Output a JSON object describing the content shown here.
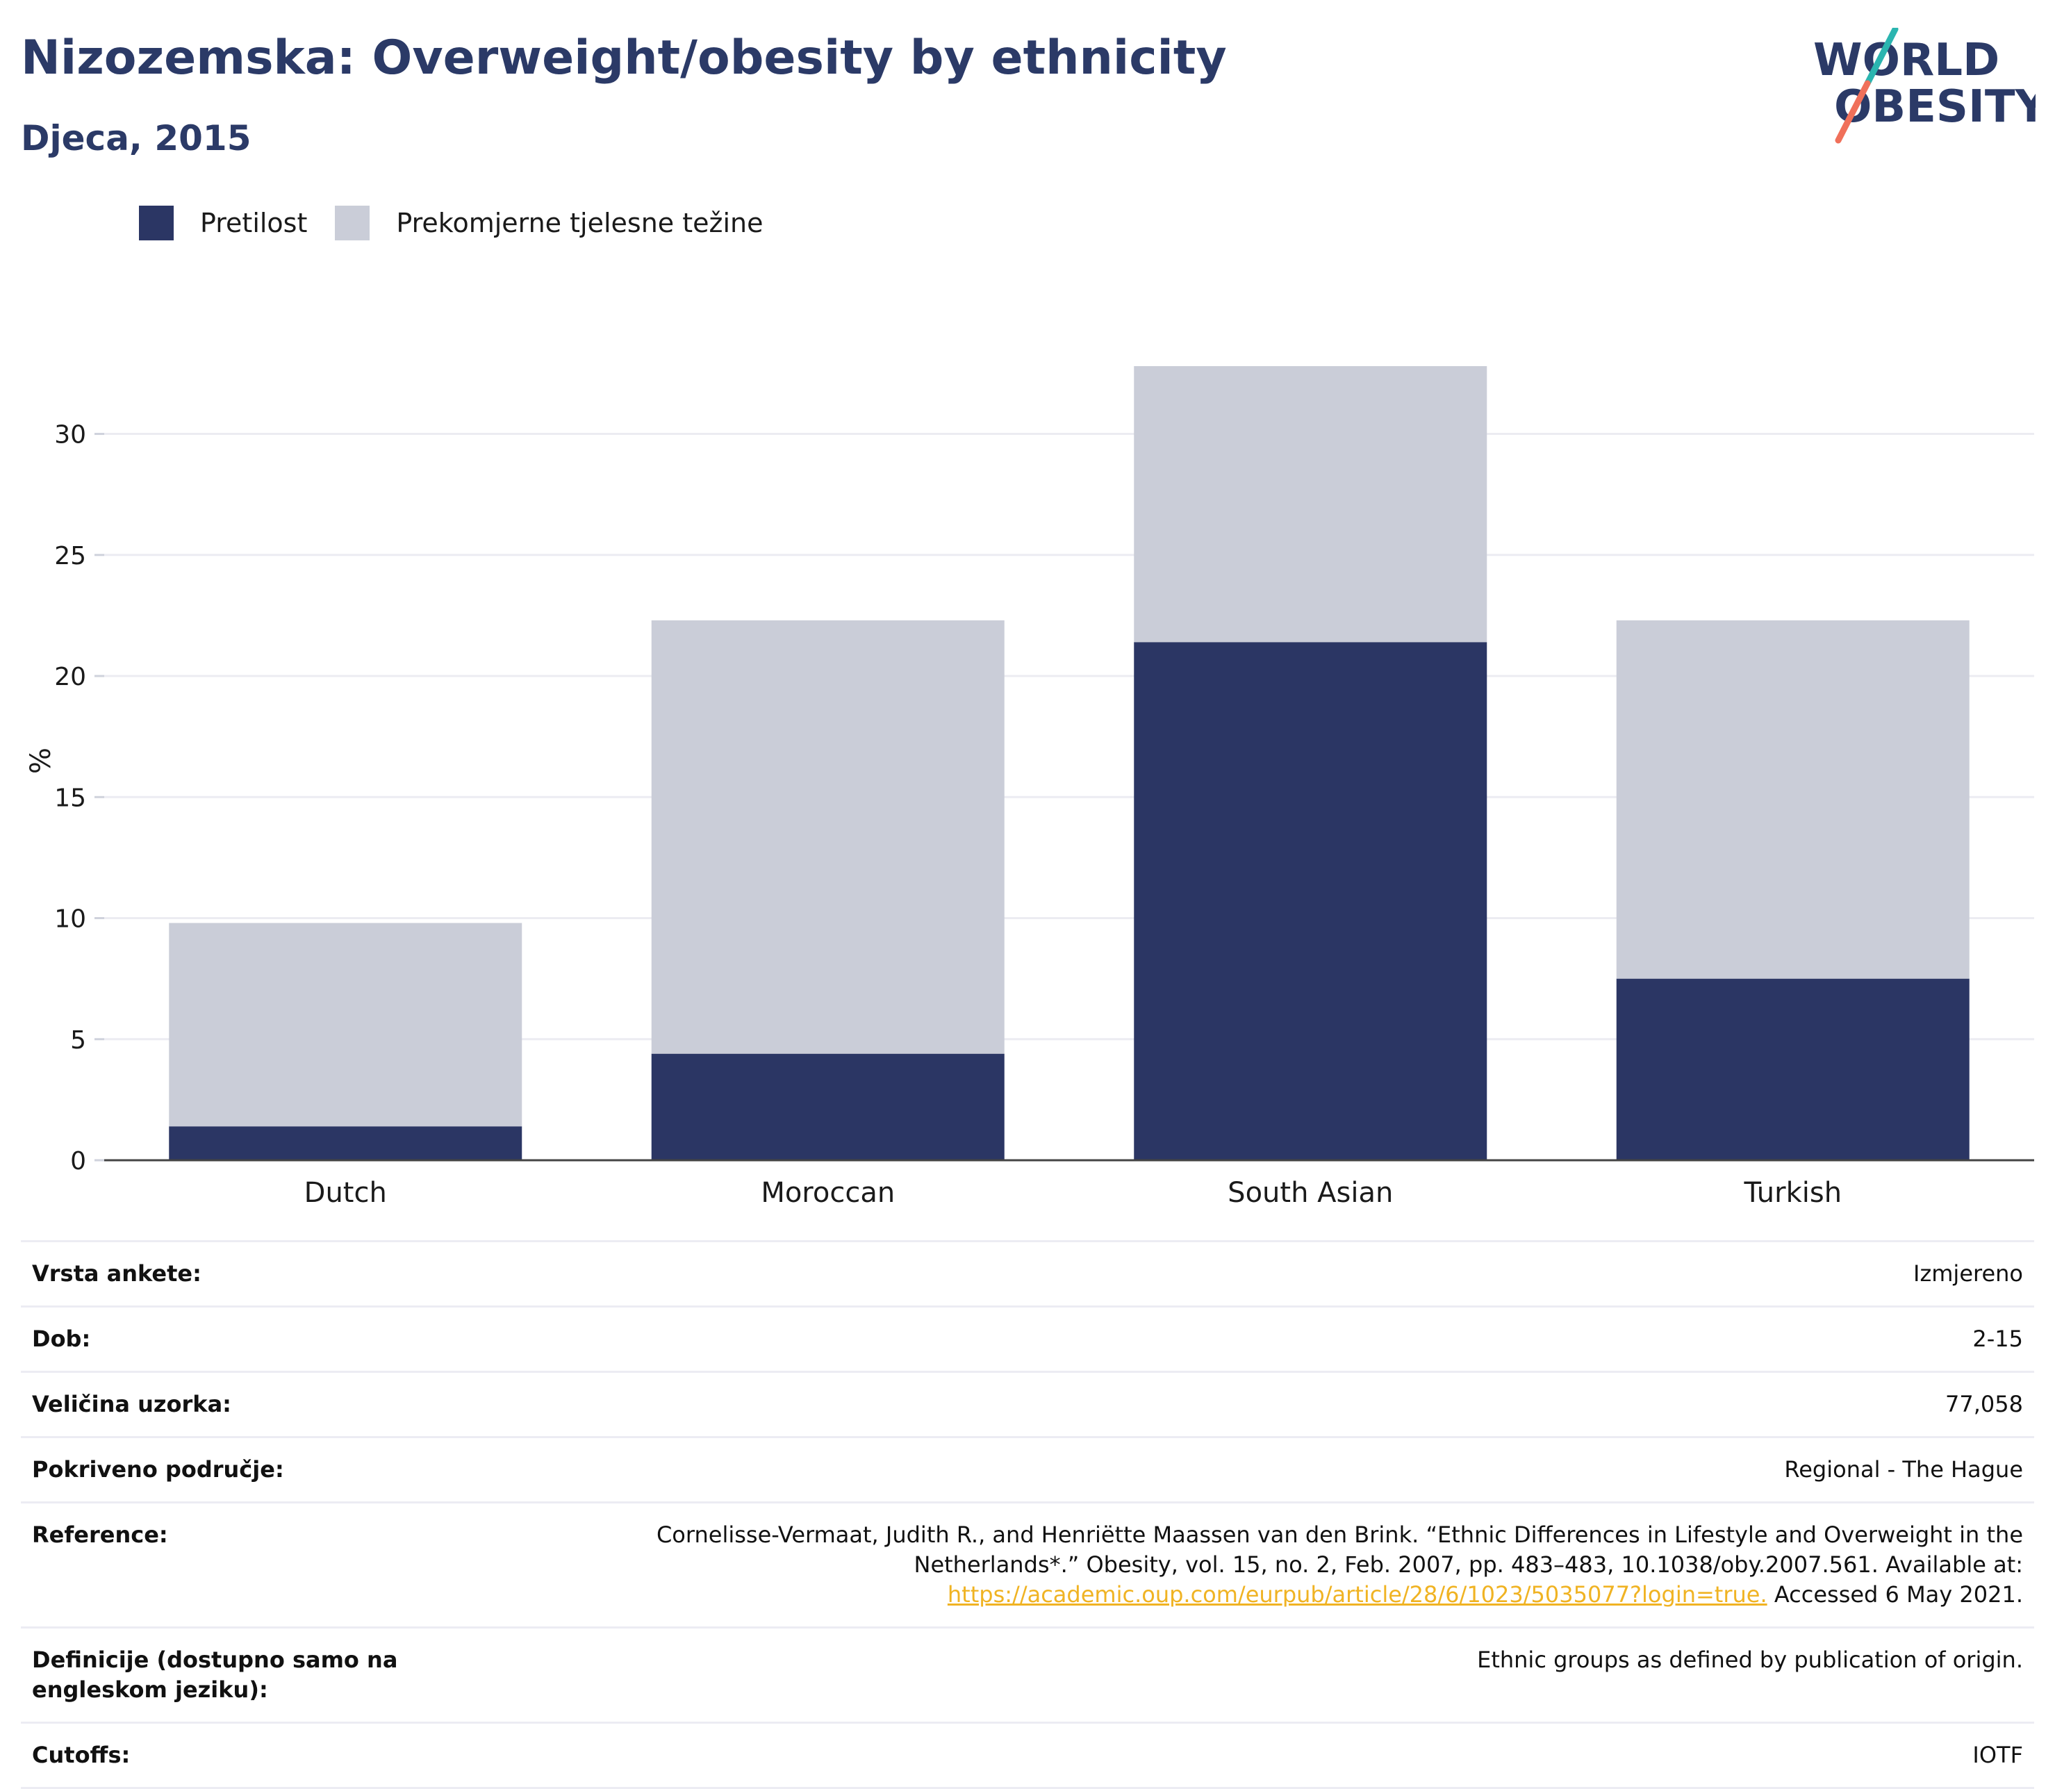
{
  "header": {
    "title": "Nizozemska: Overweight/obesity by ethnicity",
    "subtitle": "Djeca, 2015",
    "logo_line1": "WORLD",
    "logo_line2": "OBESITY"
  },
  "colors": {
    "obesity": "#2b3664",
    "overweight": "#cacdd8",
    "title": "#2b3a67",
    "link": "#f0b323",
    "logo_teal": "#2bb5b0",
    "logo_coral": "#f0705a"
  },
  "legend": {
    "placement": "top-left",
    "items": [
      {
        "label": "Pretilost",
        "color": "#2b3664"
      },
      {
        "label": "Prekomjerne tjelesne težine",
        "color": "#cacdd8"
      }
    ]
  },
  "chart_data": {
    "type": "bar",
    "stacked": true,
    "categories": [
      "Dutch",
      "Moroccan",
      "South Asian",
      "Turkish"
    ],
    "series": [
      {
        "name": "Pretilost",
        "values": [
          1.4,
          4.4,
          21.4,
          7.5
        ]
      },
      {
        "name": "Prekomjerne tjelesne težine",
        "values": [
          8.4,
          17.9,
          11.4,
          14.8
        ]
      }
    ],
    "ylabel": "%",
    "ylim": [
      0,
      33
    ],
    "yticks": [
      0,
      5,
      10,
      15,
      20,
      25,
      30
    ],
    "grid": true
  },
  "info": [
    {
      "label": "Vrsta ankete:",
      "value": "Izmjereno"
    },
    {
      "label": "Dob:",
      "value": "2-15"
    },
    {
      "label": "Veličina uzorka:",
      "value": "77,058"
    },
    {
      "label": "Pokriveno područje:",
      "value": "Regional - The Hague"
    },
    {
      "label": "Reference:",
      "value": "Cornelisse-Vermaat, Judith R., and Henriëtte Maassen van den Brink. “Ethnic Differences in Lifestyle and Overweight in the Netherlands*.” Obesity, vol. 15, no. 2, Feb. 2007, pp. 483–483, 10.1038/oby.2007.561. Available at:",
      "link": "https://academic.oup.com/eurpub/article/28/6/1023/5035077?login=true.",
      "suffix": " Accessed 6 May 2021."
    },
    {
      "label": "Definicije (dostupno samo na engleskom jeziku):",
      "value": "Ethnic groups as defined by publication of origin."
    },
    {
      "label": "Cutoffs:",
      "value": "IOTF"
    }
  ]
}
